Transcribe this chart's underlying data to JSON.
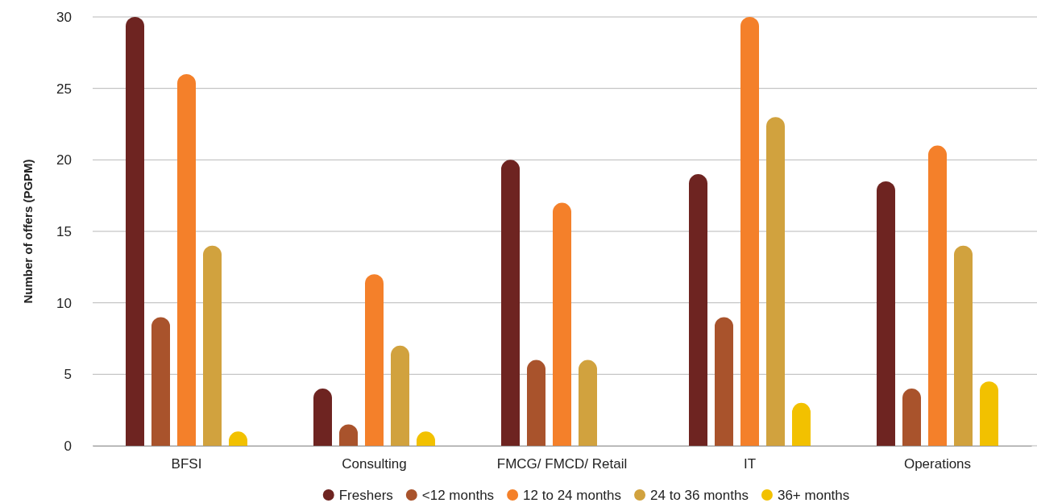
{
  "chart_data": {
    "type": "bar",
    "ylabel": "Number of offers (PGPM)",
    "categories": [
      "BFSI",
      "Consulting",
      "FMCG/ FMCD/ Retail",
      "IT",
      "Operations"
    ],
    "series": [
      {
        "name": "Freshers",
        "color": "#6e2421",
        "values": [
          30,
          4,
          20,
          19,
          18.5
        ]
      },
      {
        "name": "<12 months",
        "color": "#a9532c",
        "values": [
          9,
          1.5,
          6,
          9,
          4
        ]
      },
      {
        "name": "12 to 24 months",
        "color": "#f4802a",
        "values": [
          26,
          12,
          17,
          30,
          21
        ]
      },
      {
        "name": "24 to 36 months",
        "color": "#d1a23e",
        "values": [
          14,
          7,
          6,
          23,
          14
        ]
      },
      {
        "name": "36+ months",
        "color": "#f2c100",
        "values": [
          1,
          1,
          0,
          3,
          4.5
        ]
      }
    ],
    "ylim": [
      0,
      30
    ],
    "yticks": [
      0,
      5,
      10,
      15,
      20,
      25,
      30
    ],
    "grid": "y",
    "legend": "bottom"
  }
}
